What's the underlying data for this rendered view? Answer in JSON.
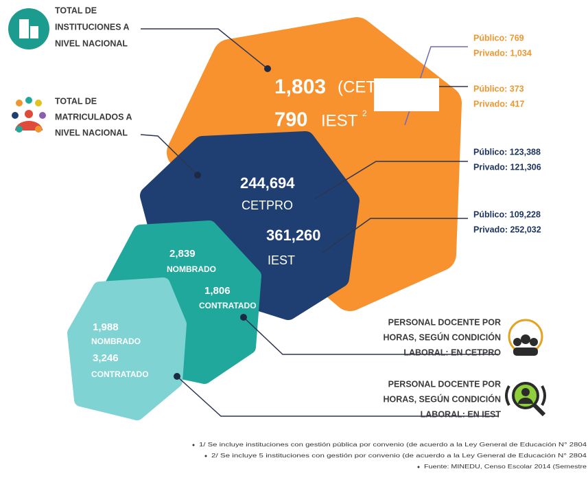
{
  "institutions": {
    "label": [
      "TOTAL DE",
      "INSTITUCIONES A",
      "NIVEL NACIONAL"
    ],
    "cetpro": {
      "total": "1,803",
      "name": "(CETPRO"
    },
    "iest": {
      "total": "790",
      "name": "IEST",
      "note": "2"
    },
    "cetpro_breakdown": [
      "Público: 769",
      "Privado: 1,034"
    ],
    "iest_breakdown": [
      "Público: 373",
      "Privado: 417"
    ]
  },
  "enrolled": {
    "label": [
      "TOTAL DE",
      "MATRICULADOS A",
      "NIVEL NACIONAL"
    ],
    "cetpro": {
      "total": "244,694",
      "name": "CETPRO"
    },
    "iest": {
      "total": "361,260",
      "name": "IEST"
    },
    "cetpro_breakdown": [
      "Público: 123,388",
      "Privado: 121,306"
    ],
    "iest_breakdown": [
      "Público: 109,228",
      "Privado: 252,032"
    ]
  },
  "teachers_cetpro": {
    "label": [
      "PERSONAL DOCENTE POR",
      "HORAS, SEGÚN CONDICIÓN",
      "LABORAL: EN CETPRO"
    ],
    "appointed": "2,839",
    "appointed_label": "NOMBRADO",
    "contracted": "1,806",
    "contracted_label": "CONTRATADO"
  },
  "teachers_iest": {
    "label": [
      "PERSONAL DOCENTE POR",
      "HORAS, SEGÚN CONDICIÓN",
      "LABORAL: EN IEST"
    ],
    "appointed": "1,988",
    "appointed_label": "NOMBRADO",
    "contracted": "3,246",
    "contracted_label": "CONTRATADO"
  },
  "footnotes": [
    "1/ Se incluye instituciones con gestión pública por convenio (de acuerdo a la Ley General de Educación N° 2804",
    "2/ Se incluye 5 instituciones con gestión por convenio (de acuerdo a la Ley General de Educación N° 2804",
    "Fuente: MINEDU, Censo Escolar 2014 (Semestre"
  ]
}
